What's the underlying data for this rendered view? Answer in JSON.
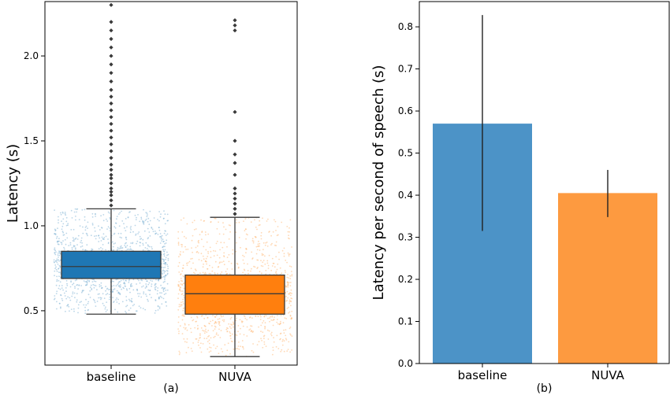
{
  "chart_data": [
    {
      "type": "box",
      "caption": "(a)",
      "title": "",
      "xlabel": "",
      "ylabel": "Latency (s)",
      "ylim": [
        0.18,
        2.32
      ],
      "yticks": [
        0.5,
        1.0,
        1.5,
        2.0
      ],
      "ytick_labels": [
        "0.5",
        "1.0",
        "1.5",
        "2.0"
      ],
      "grid": false,
      "jitter_points": true,
      "categories": [
        "baseline",
        "NUVA"
      ],
      "series": [
        {
          "category": "baseline",
          "color": "#1f77b4",
          "whisker_low": 0.48,
          "q1": 0.69,
          "median": 0.76,
          "q3": 0.85,
          "whisker_high": 1.1,
          "outliers": [
            1.12,
            1.15,
            1.18,
            1.2,
            1.22,
            1.25,
            1.28,
            1.3,
            1.33,
            1.36,
            1.4,
            1.44,
            1.48,
            1.52,
            1.56,
            1.6,
            1.64,
            1.68,
            1.72,
            1.76,
            1.8,
            1.85,
            1.9,
            1.95,
            2.0,
            2.05,
            2.1,
            2.15,
            2.2,
            2.3
          ]
        },
        {
          "category": "NUVA",
          "color": "#ff7f0e",
          "whisker_low": 0.23,
          "q1": 0.48,
          "median": 0.6,
          "q3": 0.71,
          "whisker_high": 1.05,
          "outliers": [
            1.07,
            1.1,
            1.13,
            1.16,
            1.19,
            1.22,
            1.3,
            1.37,
            1.42,
            1.5,
            1.67,
            2.15,
            2.18,
            2.21
          ]
        }
      ]
    },
    {
      "type": "bar",
      "caption": "(b)",
      "title": "",
      "xlabel": "",
      "ylabel": "Latency per second of speech (s)",
      "ylim": [
        0,
        0.86
      ],
      "yticks": [
        0.0,
        0.1,
        0.2,
        0.3,
        0.4,
        0.5,
        0.6,
        0.7,
        0.8
      ],
      "ytick_labels": [
        "0.0",
        "0.1",
        "0.2",
        "0.3",
        "0.4",
        "0.5",
        "0.6",
        "0.7",
        "0.8"
      ],
      "grid": false,
      "categories": [
        "baseline",
        "NUVA"
      ],
      "values": [
        0.57,
        0.405
      ],
      "error_low": [
        0.315,
        0.348
      ],
      "error_high": [
        0.828,
        0.46
      ],
      "colors": [
        "#4c93c7",
        "#fd9a40"
      ]
    }
  ]
}
